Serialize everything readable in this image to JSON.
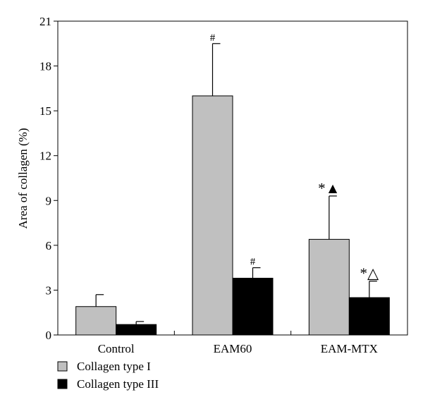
{
  "chart_data": {
    "type": "bar",
    "title": "",
    "xlabel": "",
    "ylabel": "Area of collagen (%)",
    "ylim": [
      0,
      21
    ],
    "yticks": [
      "0",
      "3",
      "6",
      "9",
      "12",
      "15",
      "18",
      "21"
    ],
    "categories": [
      "Control",
      "EAM60",
      "EAM-MTX"
    ],
    "series": [
      {
        "name": "Collagen type I",
        "color": "#c0c0c0",
        "values": [
          1.9,
          16.0,
          6.4
        ],
        "errors": [
          0.8,
          3.5,
          2.9
        ],
        "annotations": [
          "",
          "#",
          "*▲"
        ]
      },
      {
        "name": "Collagen type III",
        "color": "#000000",
        "values": [
          0.7,
          3.8,
          2.5
        ],
        "errors": [
          0.2,
          0.7,
          1.1
        ],
        "annotations": [
          "",
          "#",
          "*△"
        ]
      }
    ],
    "grid": false,
    "legend_position": "bottom-left"
  }
}
